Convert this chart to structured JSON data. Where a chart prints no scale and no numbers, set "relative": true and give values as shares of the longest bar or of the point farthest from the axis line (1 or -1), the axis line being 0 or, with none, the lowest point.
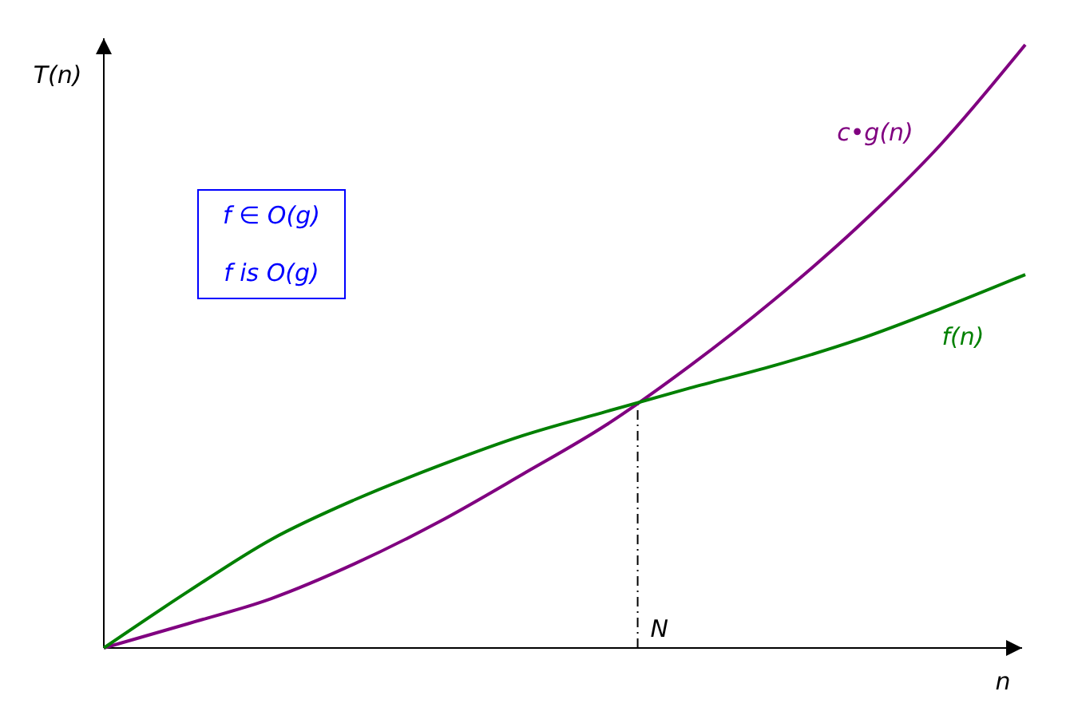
{
  "chart_data": {
    "type": "line",
    "relative": true,
    "xlabel": "n",
    "ylabel": "T(n)",
    "categories": [
      null,
      null,
      null,
      null,
      null,
      null,
      null,
      null,
      null,
      null,
      null,
      null
    ],
    "series": [
      {
        "name": "c•g(n)",
        "color": "#800080",
        "values": [
          0,
          0.04,
          0.082,
          0.14,
          0.209,
          0.288,
          0.37,
          0.468,
          0.577,
          0.698,
          0.836,
          1
        ]
      },
      {
        "name": "f(n)",
        "color": "#008000",
        "values": [
          0,
          0.093,
          0.18,
          0.246,
          0.302,
          0.352,
          0.392,
          0.431,
          0.468,
          0.511,
          0.563,
          0.619
        ]
      }
    ],
    "annotations": [
      "f ∈ O(g)",
      "f is O(g)",
      "N"
    ],
    "marker": "none",
    "line_style": "solid"
  }
}
